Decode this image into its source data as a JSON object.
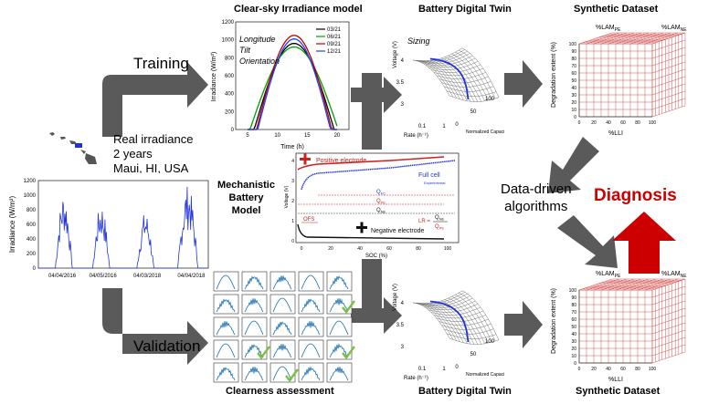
{
  "labels": {
    "training": "Training",
    "validation": "Validation",
    "real_irradiance": [
      "Real irradiance",
      "2 years",
      "Maui, HI, USA"
    ],
    "clear_sky_title": "Clear-sky Irradiance model",
    "clear_sky_params": [
      "Longitude",
      "Tilt",
      "Orientation"
    ],
    "battery_twin_top": "Battery Digital Twin",
    "battery_twin_bottom": "Battery Digital Twin",
    "sizing": "Sizing",
    "synthetic_top": "Synthetic Dataset",
    "synthetic_bottom": "Synthetic Dataset",
    "mechanistic": [
      "Mechanistic",
      "Battery",
      "Model"
    ],
    "data_driven": [
      "Data-driven",
      "algorithms"
    ],
    "diagnosis": "Diagnosis",
    "clearness": "Clearness assessment"
  },
  "clear_sky_chart": {
    "ylabel": "Irradiance (W/m²)",
    "xlabel": "Time (h)",
    "yticks": [
      "0",
      "200",
      "400",
      "600",
      "800",
      "1000",
      "1200"
    ],
    "xticks": [
      "5",
      "10",
      "15",
      "20"
    ],
    "legend": [
      "03/21",
      "06/21",
      "09/21",
      "12/21"
    ],
    "colors": [
      "#000000",
      "#00a000",
      "#c00000",
      "#2040ff"
    ]
  },
  "real_chart": {
    "ylabel": "Irradiance (W/m²)",
    "yticks": [
      "0",
      "200",
      "400",
      "600",
      "800",
      "1000",
      "1200"
    ],
    "xticks": [
      "04/04/2016",
      "04/05/2016",
      "04/03/2018",
      "04/04/2018"
    ]
  },
  "mechanistic_chart": {
    "ylabel": "Voltage (V)",
    "xlabel": "SOC (%)",
    "yticks": [
      "0",
      "1",
      "2",
      "3",
      "4"
    ],
    "xticks": [
      "0",
      "20",
      "40",
      "60",
      "80",
      "100"
    ],
    "positive": "Positive electrode",
    "negative": "Negative electrode",
    "full_cell": "Full cell",
    "experimental": "Experimental",
    "q_fc": "Q",
    "q_fc_sub": "FC",
    "q_pe": "Q",
    "q_pe_sub": "PE",
    "q_ne": "Q",
    "q_ne_sub": "NE",
    "ofs": "OFS",
    "lr": "LR =",
    "lr_num": "Q",
    "lr_num_sub": "NE",
    "lr_den": "Q",
    "lr_den_sub": "PE"
  },
  "battery_chart": {
    "zlabel": "Voltage (V)",
    "xlabel": "Rate (h⁻¹)",
    "ylabel": "Normalized Capacity (%)",
    "zticks": [
      "3",
      "3.5",
      "4"
    ],
    "xticks": [
      "0.1",
      "1"
    ],
    "yticks": [
      "0",
      "50",
      "100"
    ]
  },
  "synthetic_chart": {
    "zlabel": "Degradation extent (%)",
    "xlabel": "%LLI",
    "lam_pe": "%LAM",
    "lam_pe_sub": "PE",
    "lam_ne": "%LAM",
    "lam_ne_sub": "NE",
    "zticks": [
      "0",
      "10",
      "20",
      "30",
      "40",
      "50",
      "60",
      "70",
      "80",
      "90",
      "100"
    ],
    "xticks": [
      "0",
      "20",
      "40",
      "60",
      "80",
      "100"
    ]
  },
  "colors": {
    "arrow": "#5a5a5a",
    "diagnosis": "#cc0000",
    "red_grid": "#d04040",
    "blue_curve": "#2233dd",
    "check": "#7cc040"
  }
}
